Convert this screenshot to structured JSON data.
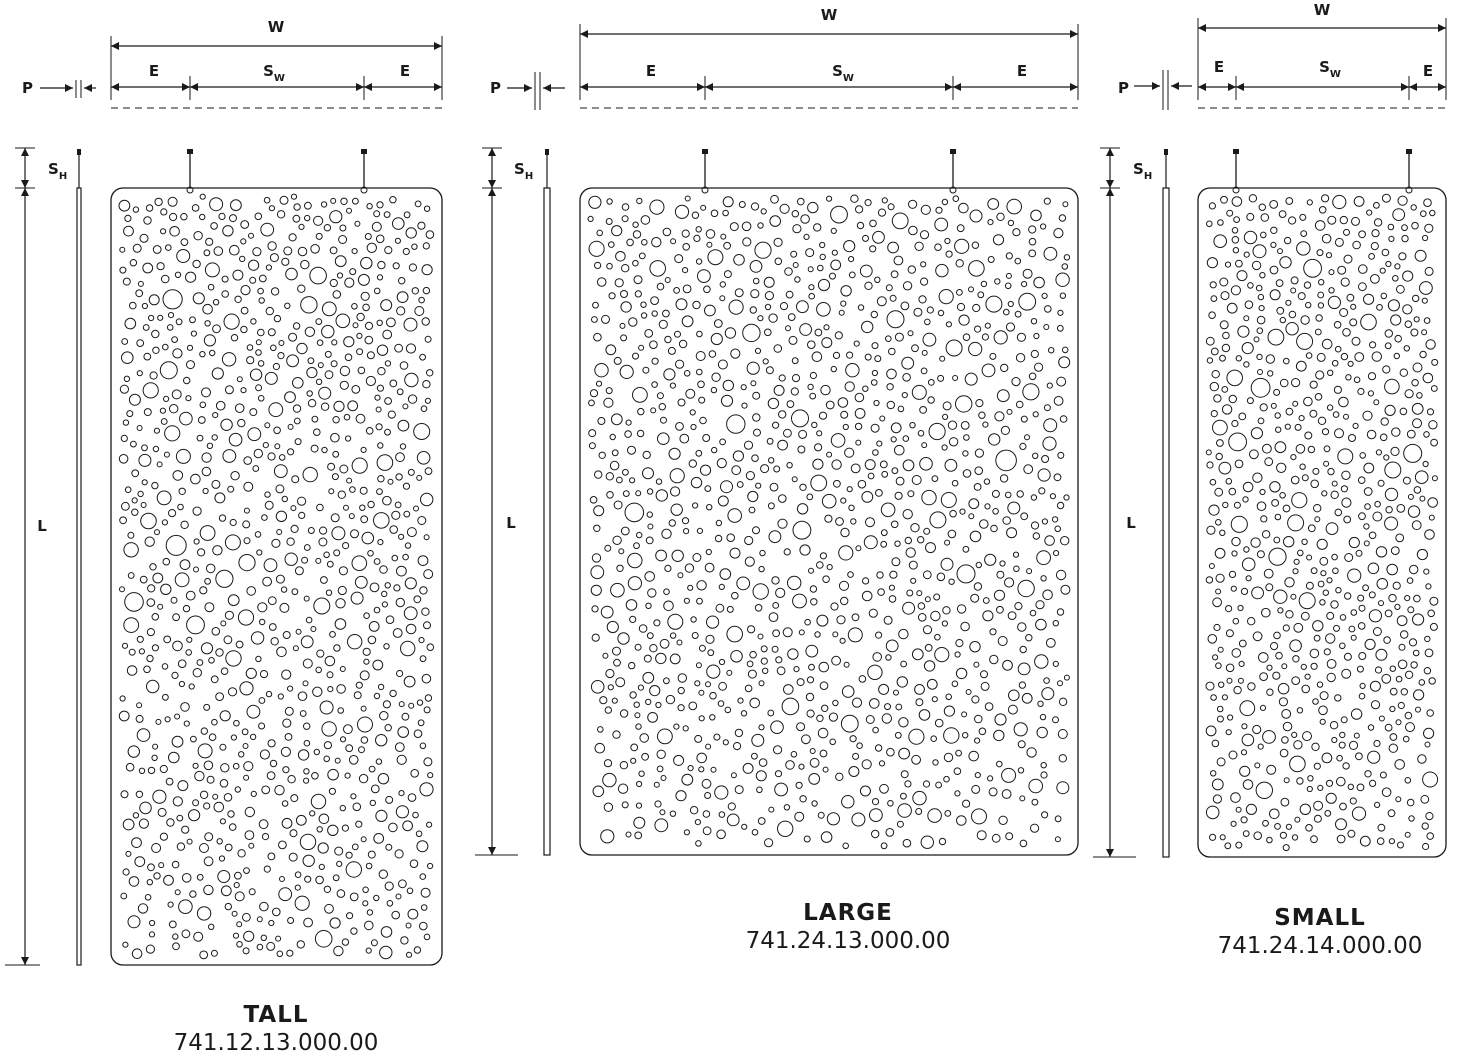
{
  "labels": {
    "width": "W",
    "depth": "P",
    "edge": "E",
    "spacing_w_main": "S",
    "spacing_w_sub": "W",
    "spacing_h_main": "S",
    "spacing_h_sub": "H",
    "length": "L"
  },
  "panels": [
    {
      "name": "TALL",
      "code": "741.12.13.000.00"
    },
    {
      "name": "LARGE",
      "code": "741.24.13.000.00"
    },
    {
      "name": "SMALL",
      "code": "741.24.14.000.00"
    }
  ],
  "colors": {
    "line": "#1a1a1a",
    "background": "#ffffff"
  }
}
